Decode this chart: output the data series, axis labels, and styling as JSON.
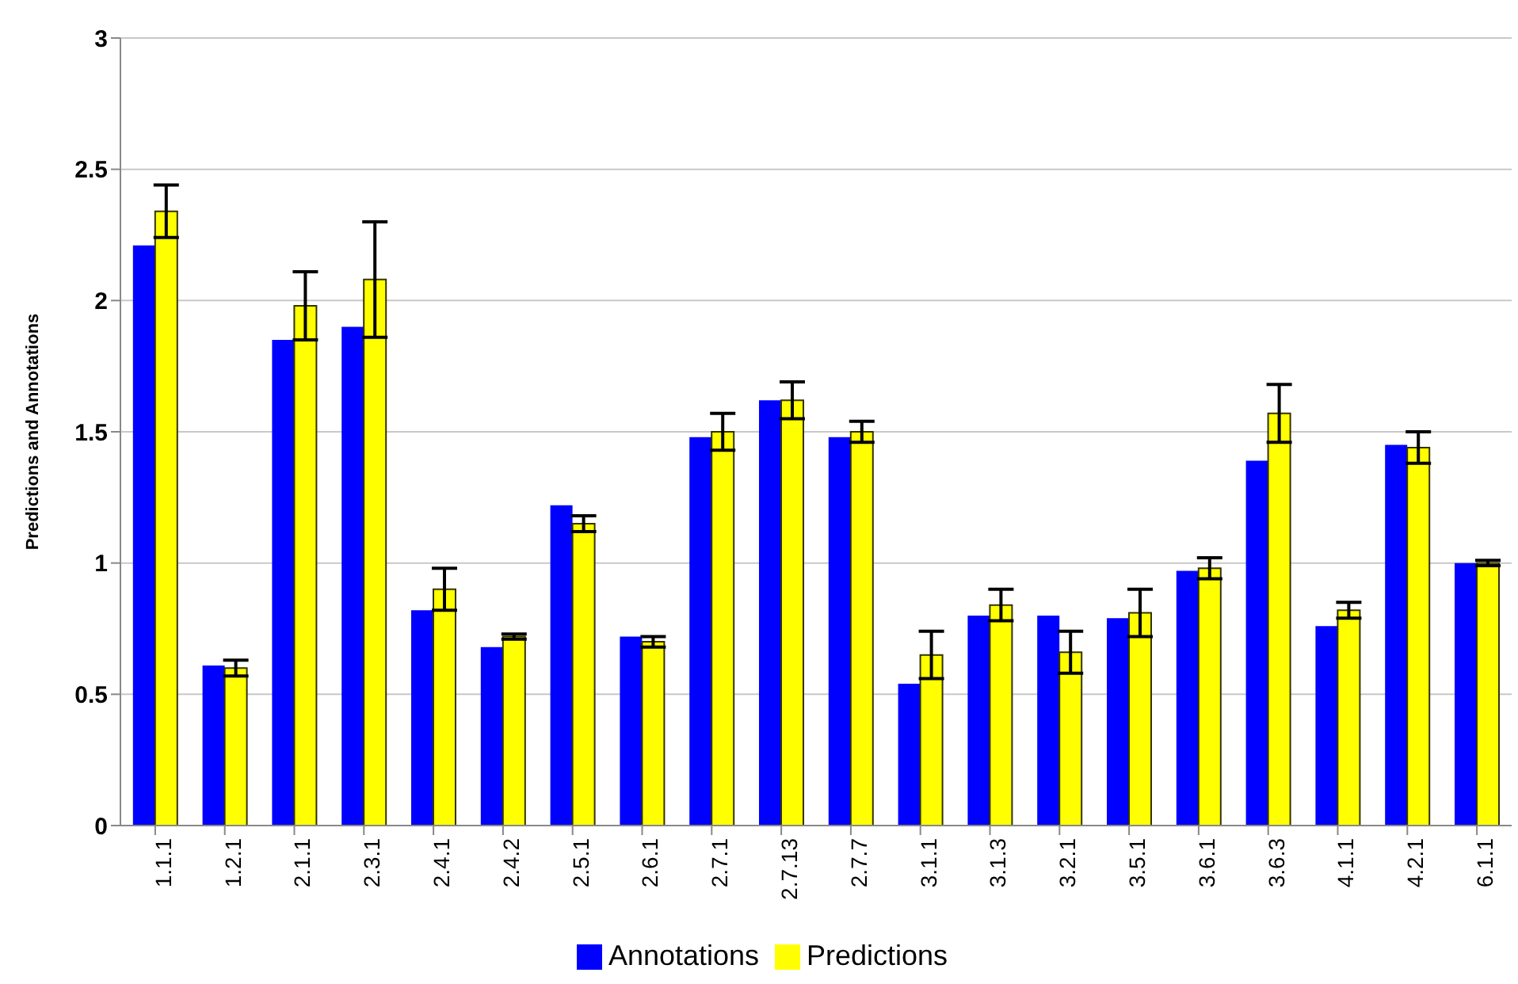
{
  "chart_data": {
    "type": "bar",
    "ylabel": "Predictions and Annotations",
    "categories": [
      "1.1.1",
      "1.2.1",
      "2.1.1",
      "2.3.1",
      "2.4.1",
      "2.4.2",
      "2.5.1",
      "2.6.1",
      "2.7.1",
      "2.7.13",
      "2.7.7",
      "3.1.1",
      "3.1.3",
      "3.2.1",
      "3.5.1",
      "3.6.1",
      "3.6.3",
      "4.1.1",
      "4.2.1",
      "6.1.1"
    ],
    "series": [
      {
        "name": "Annotations",
        "color": "#0000ff",
        "values": [
          2.21,
          0.61,
          1.85,
          1.9,
          0.82,
          0.68,
          1.22,
          0.72,
          1.48,
          1.62,
          1.48,
          0.54,
          0.8,
          0.8,
          0.79,
          0.97,
          1.39,
          0.76,
          1.45,
          1.0
        ]
      },
      {
        "name": "Predictions",
        "color": "#ffff00",
        "values": [
          2.34,
          0.6,
          1.98,
          2.08,
          0.9,
          0.72,
          1.15,
          0.7,
          1.5,
          1.62,
          1.5,
          0.65,
          0.84,
          0.66,
          0.81,
          0.98,
          1.57,
          0.82,
          1.44,
          1.0
        ],
        "errors": [
          0.1,
          0.03,
          0.13,
          0.22,
          0.08,
          0.01,
          0.03,
          0.02,
          0.07,
          0.07,
          0.04,
          0.09,
          0.06,
          0.08,
          0.09,
          0.04,
          0.11,
          0.03,
          0.06,
          0.01
        ]
      }
    ],
    "ylim": [
      0,
      3
    ],
    "yticks": [
      0,
      0.5,
      1,
      1.5,
      2,
      2.5,
      3
    ],
    "grid": "y",
    "legend": "bottom"
  }
}
